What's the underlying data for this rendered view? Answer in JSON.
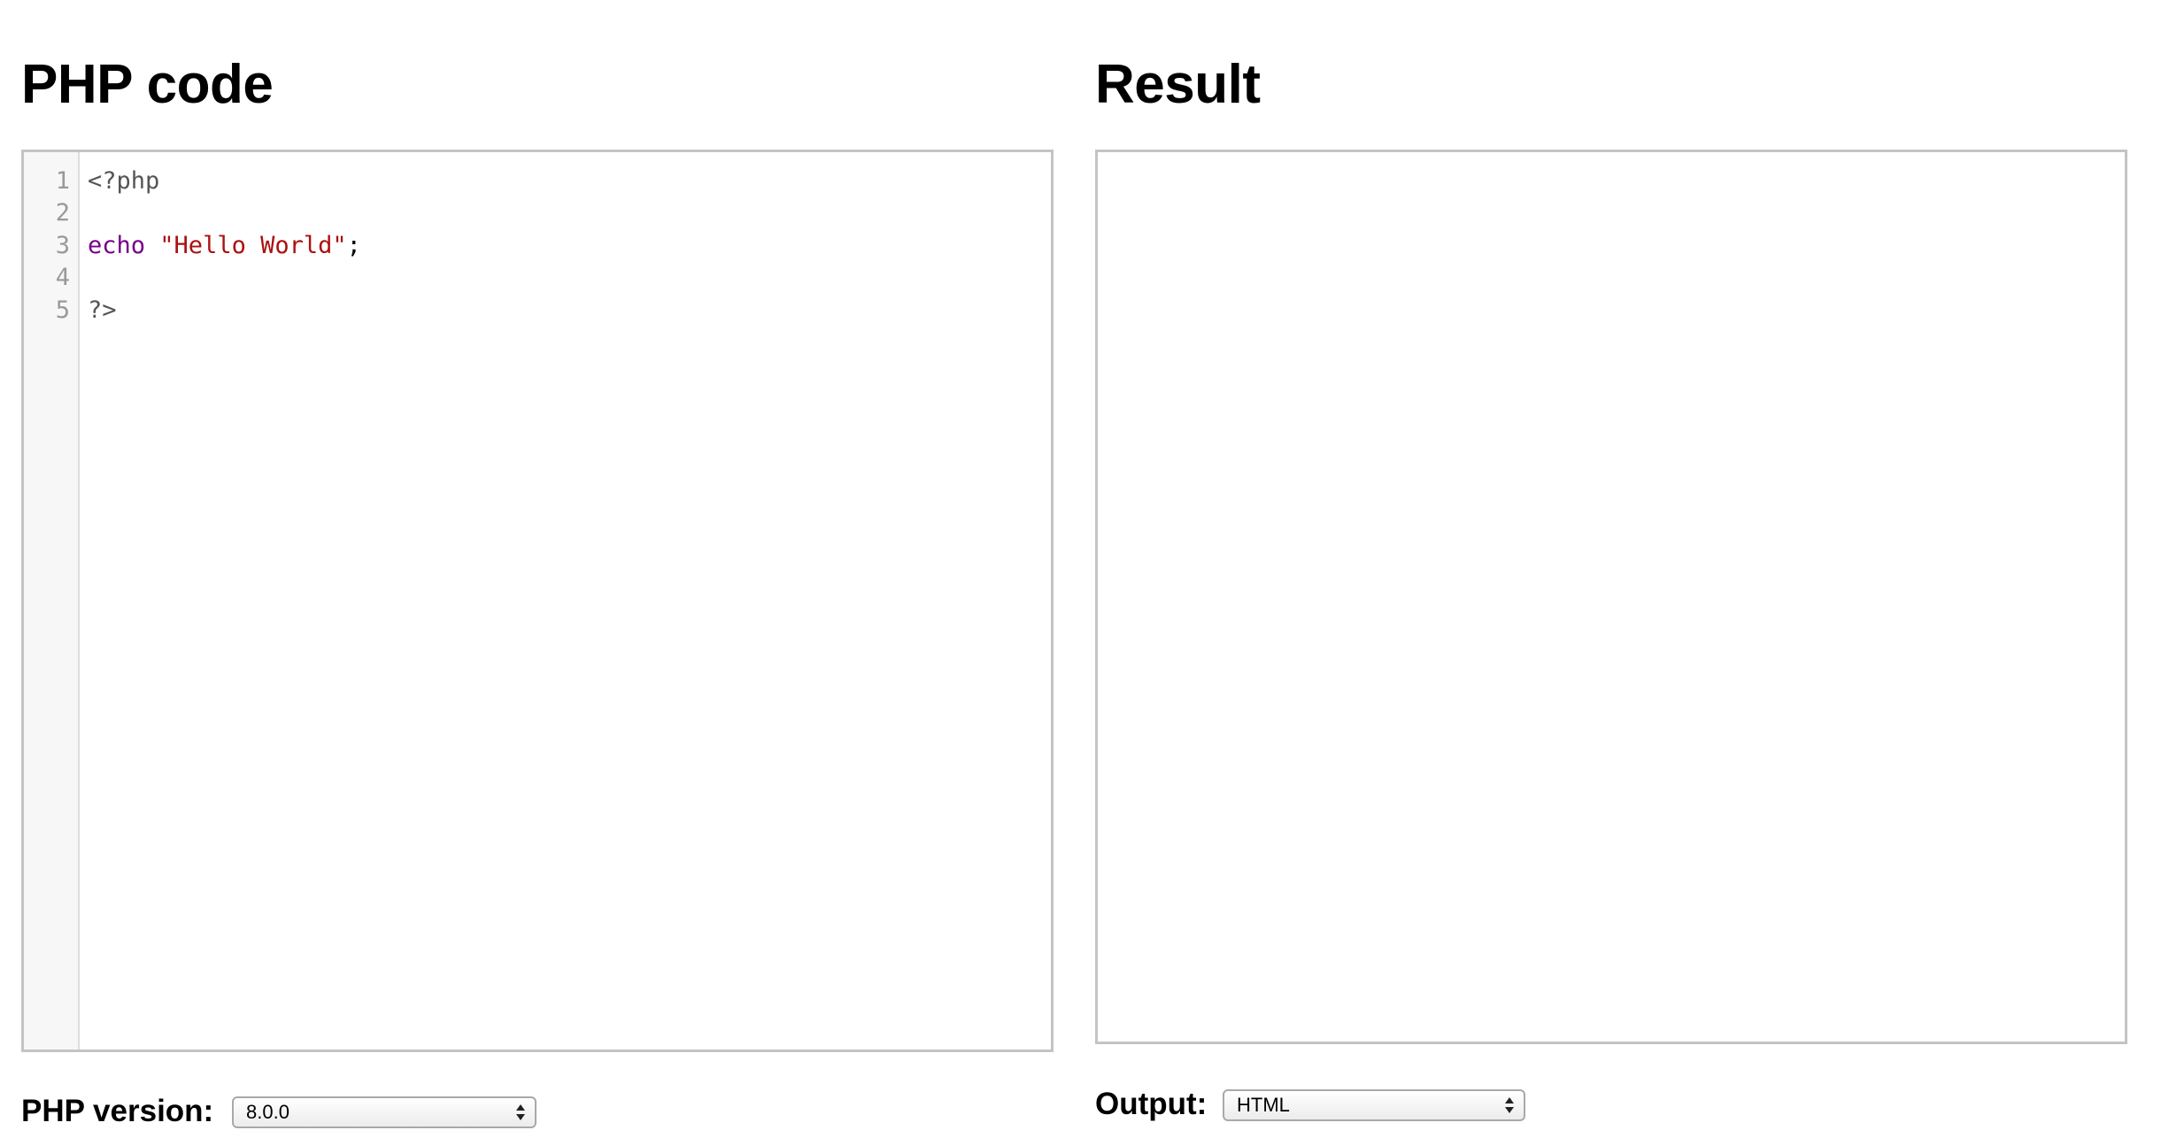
{
  "left_panel": {
    "title": "PHP code",
    "editor": {
      "line_numbers": [
        "1",
        "2",
        "3",
        "4",
        "5"
      ],
      "lines": [
        [
          {
            "type": "meta",
            "text": "<?php"
          }
        ],
        [],
        [
          {
            "type": "keyword",
            "text": "echo"
          },
          {
            "type": "plain",
            "text": " "
          },
          {
            "type": "string",
            "text": "\"Hello World\""
          },
          {
            "type": "plain",
            "text": ";"
          }
        ],
        [],
        [
          {
            "type": "meta",
            "text": "?>"
          }
        ]
      ]
    },
    "version_label": "PHP version:",
    "version_value": "8.0.0"
  },
  "right_panel": {
    "title": "Result",
    "output_label": "Output:",
    "output_value": "HTML"
  }
}
